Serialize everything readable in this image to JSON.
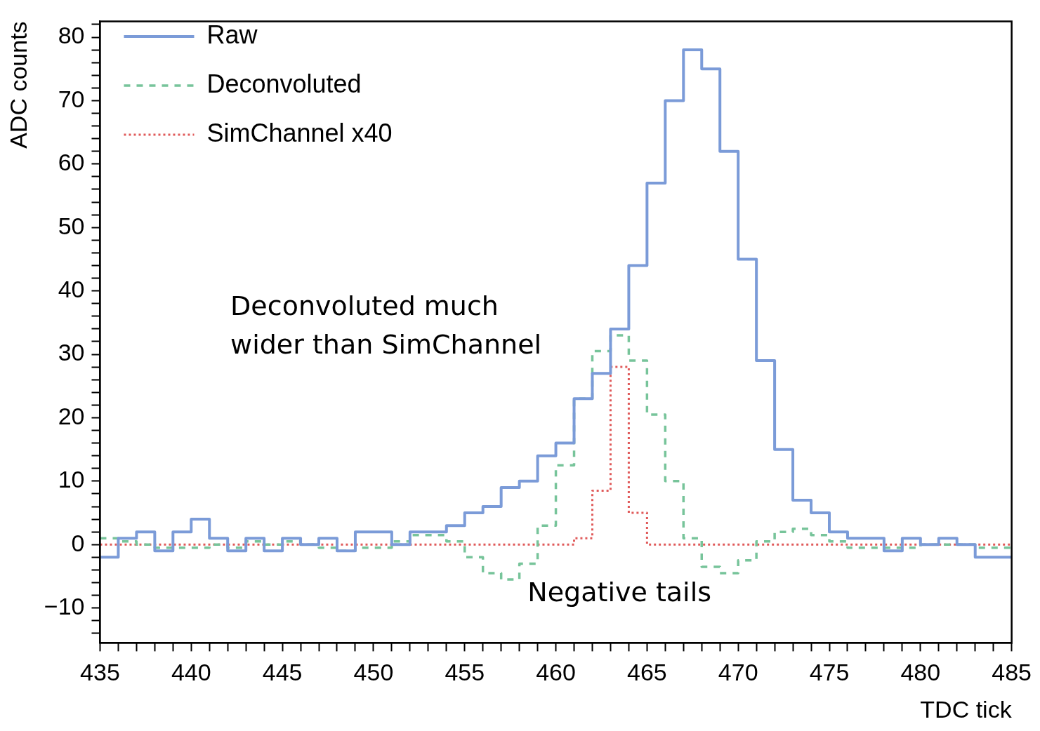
{
  "chart_data": {
    "type": "histogram",
    "xlabel": "TDC tick",
    "ylabel": "ADC counts",
    "bins": [
      435,
      436,
      437,
      438,
      439,
      440,
      441,
      442,
      443,
      444,
      445,
      446,
      447,
      448,
      449,
      450,
      451,
      452,
      453,
      454,
      455,
      456,
      457,
      458,
      459,
      460,
      461,
      462,
      463,
      464,
      465,
      466,
      467,
      468,
      469,
      470,
      471,
      472,
      473,
      474,
      475,
      476,
      477,
      478,
      479,
      480,
      481,
      482,
      483,
      484,
      485
    ],
    "series": [
      {
        "name": "Raw",
        "color": "#7b9bd8",
        "line_style": "solid",
        "values": [
          -2,
          1,
          2,
          -1,
          2,
          4,
          1,
          -1,
          1,
          -1,
          1,
          0,
          1,
          -1,
          2,
          2,
          0,
          2,
          2,
          3,
          5,
          6,
          9,
          10,
          14,
          16,
          23,
          27,
          34,
          44,
          57,
          70,
          78,
          75,
          62,
          45,
          29,
          15,
          7,
          5,
          2,
          1,
          1,
          -1,
          1,
          0,
          1,
          0,
          -2,
          -2
        ]
      },
      {
        "name": "Deconvoluted",
        "color": "#77c49a",
        "line_style": "dashed",
        "values": [
          1,
          0.5,
          0,
          -0.5,
          -0.5,
          -0.5,
          0,
          -0.5,
          0.5,
          0,
          0.5,
          0,
          -0.5,
          -1,
          -0.5,
          -0.5,
          0.5,
          1.5,
          1.5,
          0.5,
          -2,
          -4.5,
          -5.5,
          -3,
          3,
          12.5,
          23,
          30.5,
          33,
          29,
          20.5,
          10,
          1,
          -3.5,
          -4.5,
          -2.5,
          0.5,
          2,
          2.5,
          1.5,
          0.5,
          -0.5,
          -0.5,
          -0.5,
          -0.5,
          0,
          0,
          0,
          -0.5,
          -0.5
        ]
      },
      {
        "name": "SimChannel x40",
        "color": "#e05a5a",
        "line_style": "dotted",
        "values": [
          0,
          0,
          0,
          0,
          0,
          0,
          0,
          0,
          0,
          0,
          0,
          0,
          0,
          0,
          0,
          0,
          0,
          0,
          0,
          0,
          0,
          0,
          0,
          0,
          0,
          0,
          1,
          8.5,
          28,
          5,
          0,
          0,
          0,
          0,
          0,
          0,
          0,
          0,
          0,
          0,
          0,
          0,
          0,
          0,
          0,
          0,
          0,
          0,
          0,
          0
        ]
      }
    ],
    "xlim": [
      435,
      485
    ],
    "xticks": [
      435,
      {
        "value": 436,
        "label": null
      },
      {
        "value": 437,
        "label": null
      },
      {
        "value": 438,
        "label": null
      },
      {
        "value": 439,
        "label": null
      },
      440,
      {
        "value": 441,
        "label": null
      },
      {
        "value": 442,
        "label": null
      },
      {
        "value": 443,
        "label": null
      },
      {
        "value": 444,
        "label": null
      },
      445,
      {
        "value": 446,
        "label": null
      },
      {
        "value": 447,
        "label": null
      },
      {
        "value": 448,
        "label": null
      },
      {
        "value": 449,
        "label": null
      },
      450,
      {
        "value": 451,
        "label": null
      },
      {
        "value": 452,
        "label": null
      },
      {
        "value": 453,
        "label": null
      },
      {
        "value": 454,
        "label": null
      },
      455,
      {
        "value": 456,
        "label": null
      },
      {
        "value": 457,
        "label": null
      },
      {
        "value": 458,
        "label": null
      },
      {
        "value": 459,
        "label": null
      },
      460,
      {
        "value": 461,
        "label": null
      },
      {
        "value": 462,
        "label": null
      },
      {
        "value": 463,
        "label": null
      },
      {
        "value": 464,
        "label": null
      },
      465,
      {
        "value": 466,
        "label": null
      },
      {
        "value": 467,
        "label": null
      },
      {
        "value": 468,
        "label": null
      },
      {
        "value": 469,
        "label": null
      },
      470,
      {
        "value": 471,
        "label": null
      },
      {
        "value": 472,
        "label": null
      },
      {
        "value": 473,
        "label": null
      },
      {
        "value": 474,
        "label": null
      },
      475,
      {
        "value": 476,
        "label": null
      },
      {
        "value": 477,
        "label": null
      },
      {
        "value": 478,
        "label": null
      },
      {
        "value": 479,
        "label": null
      },
      480,
      {
        "value": 481,
        "label": null
      },
      {
        "value": 482,
        "label": null
      },
      {
        "value": 483,
        "label": null
      },
      {
        "value": 484,
        "label": null
      },
      485
    ],
    "ylim": [
      -15.5,
      82.5
    ],
    "yticks": [
      {
        "value": -14,
        "label": null
      },
      {
        "value": -12,
        "label": null
      },
      {
        "value": -10,
        "label": "−10"
      },
      {
        "value": -8,
        "label": null
      },
      {
        "value": -6,
        "label": null
      },
      {
        "value": -4,
        "label": null
      },
      {
        "value": -2,
        "label": null
      },
      0,
      {
        "value": 2,
        "label": null
      },
      {
        "value": 4,
        "label": null
      },
      {
        "value": 6,
        "label": null
      },
      {
        "value": 8,
        "label": null
      },
      10,
      {
        "value": 12,
        "label": null
      },
      {
        "value": 14,
        "label": null
      },
      {
        "value": 16,
        "label": null
      },
      {
        "value": 18,
        "label": null
      },
      20,
      {
        "value": 22,
        "label": null
      },
      {
        "value": 24,
        "label": null
      },
      {
        "value": 26,
        "label": null
      },
      {
        "value": 28,
        "label": null
      },
      30,
      {
        "value": 32,
        "label": null
      },
      {
        "value": 34,
        "label": null
      },
      {
        "value": 36,
        "label": null
      },
      {
        "value": 38,
        "label": null
      },
      40,
      {
        "value": 42,
        "label": null
      },
      {
        "value": 44,
        "label": null
      },
      {
        "value": 46,
        "label": null
      },
      {
        "value": 48,
        "label": null
      },
      50,
      {
        "value": 52,
        "label": null
      },
      {
        "value": 54,
        "label": null
      },
      {
        "value": 56,
        "label": null
      },
      {
        "value": 58,
        "label": null
      },
      60,
      {
        "value": 62,
        "label": null
      },
      {
        "value": 64,
        "label": null
      },
      {
        "value": 66,
        "label": null
      },
      {
        "value": 68,
        "label": null
      },
      70,
      {
        "value": 72,
        "label": null
      },
      {
        "value": 74,
        "label": null
      },
      {
        "value": 76,
        "label": null
      },
      {
        "value": 78,
        "label": null
      },
      80,
      {
        "value": 82,
        "label": null
      }
    ],
    "grid": false,
    "legend": "top left",
    "annotations": [
      "Deconvoluted much wider than SimChannel",
      "Negative tails"
    ]
  }
}
